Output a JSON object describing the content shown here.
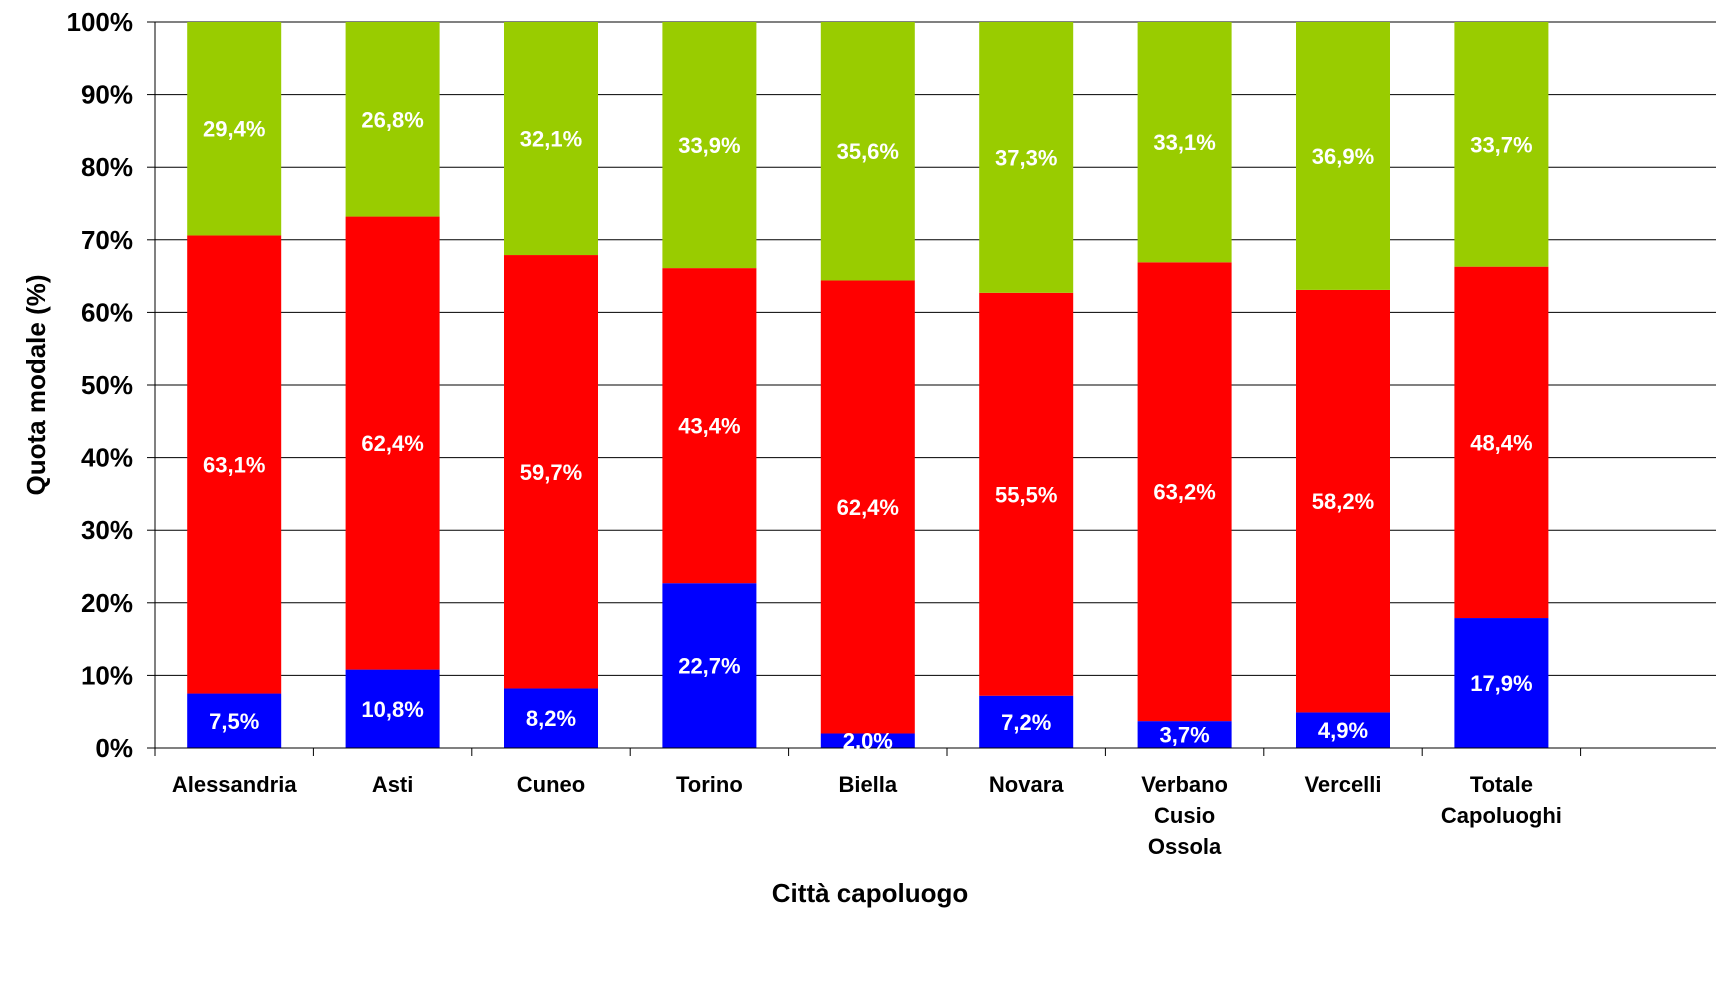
{
  "chart_data": {
    "type": "bar",
    "stacked": true,
    "percent_axis": true,
    "title": "",
    "xlabel": "Città capoluogo",
    "ylabel": "Quota modale (%)",
    "ylim": [
      0,
      100
    ],
    "yticks": [
      "0%",
      "10%",
      "20%",
      "30%",
      "40%",
      "50%",
      "60%",
      "70%",
      "80%",
      "90%",
      "100%"
    ],
    "grid": true,
    "legend": "none",
    "categories": [
      [
        "Alessandria"
      ],
      [
        "Asti"
      ],
      [
        "Cuneo"
      ],
      [
        "Torino"
      ],
      [
        "Biella"
      ],
      [
        "Novara"
      ],
      [
        "Verbano",
        "Cusio",
        "Ossola"
      ],
      [
        "Vercelli"
      ],
      [
        "Totale",
        "Capoluoghi"
      ]
    ],
    "series": [
      {
        "color": "#0000ff",
        "values": [
          7.5,
          10.8,
          8.2,
          22.7,
          2.0,
          7.2,
          3.7,
          4.9,
          17.9
        ],
        "labels": [
          "7,5%",
          "10,8%",
          "8,2%",
          "22,7%",
          "2,0%",
          "7,2%",
          "3,7%",
          "4,9%",
          "17,9%"
        ]
      },
      {
        "color": "#ff0000",
        "values": [
          63.1,
          62.4,
          59.7,
          43.4,
          62.4,
          55.5,
          63.2,
          58.2,
          48.4
        ],
        "labels": [
          "63,1%",
          "62,4%",
          "59,7%",
          "43,4%",
          "62,4%",
          "55,5%",
          "63,2%",
          "58,2%",
          "48,4%"
        ]
      },
      {
        "color": "#99cc00",
        "values": [
          29.4,
          26.8,
          32.1,
          33.9,
          35.6,
          37.3,
          33.1,
          36.9,
          33.7
        ],
        "labels": [
          "29,4%",
          "26,8%",
          "32,1%",
          "33,9%",
          "35,6%",
          "37,3%",
          "33,1%",
          "36,9%",
          "33,7%"
        ]
      }
    ]
  }
}
